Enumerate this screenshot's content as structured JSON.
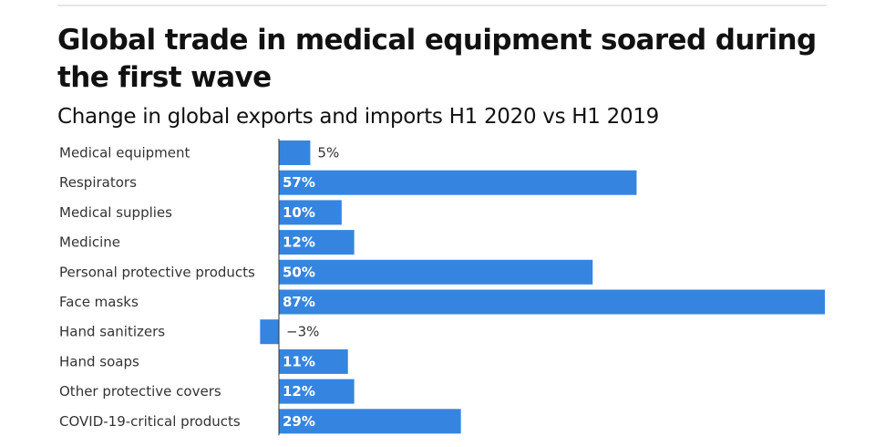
{
  "header": {
    "title": "Global trade in medical equipment soared during the first wave",
    "subtitle": "Change in global exports and imports H1 2020 vs H1 2019"
  },
  "colors": {
    "bar": "#3585e0",
    "axis": "#333333"
  },
  "chart_data": {
    "type": "bar",
    "orientation": "horizontal",
    "title": "Global trade in medical equipment soared during the first wave",
    "subtitle": "Change in global exports and imports H1 2020 vs H1 2019",
    "xlabel": "",
    "ylabel": "",
    "unit": "%",
    "grid": false,
    "xlim": [
      -3,
      87
    ],
    "categories": [
      "Medical equipment",
      "Respirators",
      "Medical supplies",
      "Medicine",
      "Personal protective products",
      "Face masks",
      "Hand sanitizers",
      "Hand soaps",
      "Other protective covers",
      "COVID-19-critical products"
    ],
    "values": [
      5,
      57,
      10,
      12,
      50,
      87,
      -3,
      11,
      12,
      29
    ],
    "labels": [
      "5%",
      "57%",
      "10%",
      "12%",
      "50%",
      "87%",
      "−3%",
      "11%",
      "12%",
      "29%"
    ]
  }
}
